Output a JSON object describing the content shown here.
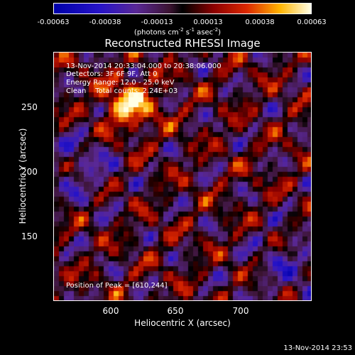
{
  "colorbar": {
    "ticks": [
      "-0.00063",
      "-0.00038",
      "-0.00013",
      "0.00013",
      "0.00038",
      "0.00063"
    ],
    "unit_pre": "(photons cm",
    "unit_exp1": "-2",
    "unit_mid1": " s",
    "unit_exp2": "-1",
    "unit_mid2": " asec",
    "unit_exp3": "-2",
    "unit_post": ")"
  },
  "plot": {
    "title": "Reconstructed RHESSI Image",
    "info_lines": [
      "13-Nov-2014 20:33:04.000 to 20:38:06.000",
      "Detectors: 3F 6F 9F, Att 0",
      "Energy Range: 12.0 - 25.0 keV",
      "Clean    Total counts: 2.24E+03"
    ],
    "peak_label": "Position of Peak = [610,244]",
    "xlabel": "Heliocentric X (arcsec)",
    "ylabel": "Heliocentric Y (arcsec)",
    "xticks": [
      "600",
      "650",
      "700"
    ],
    "yticks": [
      "250",
      "200",
      "150"
    ]
  },
  "footer": "13-Nov-2014 23:53"
}
